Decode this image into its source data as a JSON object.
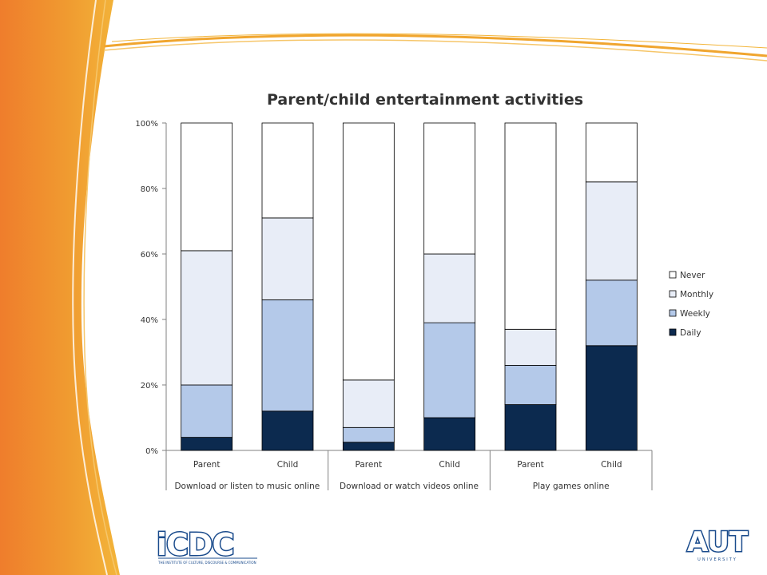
{
  "chart_data": {
    "type": "bar",
    "stacked": true,
    "percent": true,
    "title": "Parent/child entertainment activities",
    "xlabel": "",
    "ylabel": "",
    "ylim": [
      0,
      100
    ],
    "y_ticks": [
      "0%",
      "20%",
      "40%",
      "60%",
      "80%",
      "100%"
    ],
    "grid": false,
    "legend_position": "right",
    "categories": [
      "Parent",
      "Child",
      "Parent",
      "Child",
      "Parent",
      "Child"
    ],
    "groups": [
      {
        "label": "Download or listen to music online",
        "span": 2
      },
      {
        "label": "Download or watch videos online",
        "span": 2
      },
      {
        "label": "Play games online",
        "span": 2
      }
    ],
    "series": [
      {
        "name": "Daily",
        "color": "#0c2a4f",
        "values": [
          4,
          12,
          2.5,
          10,
          14,
          32
        ]
      },
      {
        "name": "Weekly",
        "color": "#b4c9e9",
        "values": [
          16,
          34,
          4.5,
          29,
          12,
          20
        ]
      },
      {
        "name": "Monthly",
        "color": "#e8edf7",
        "values": [
          41,
          25,
          14.5,
          21,
          11,
          30
        ]
      },
      {
        "name": "Never",
        "color": "#ffffff",
        "values": [
          39,
          29,
          78.5,
          40,
          63,
          18
        ]
      }
    ],
    "legend_order": [
      "Never",
      "Monthly",
      "Weekly",
      "Daily"
    ]
  },
  "logos": {
    "left": {
      "text": "iCDC",
      "subtitle": "THE INSTITUTE OF CULTURE, DISCOURSE & COMMUNICATION",
      "color": "#1a4b8c"
    },
    "right": {
      "text": "AUT",
      "subtitle": "UNIVERSITY",
      "color": "#1a4b8c"
    }
  },
  "theme": {
    "accent_orange": "#ef7d2c",
    "accent_yellow": "#f2b233"
  }
}
